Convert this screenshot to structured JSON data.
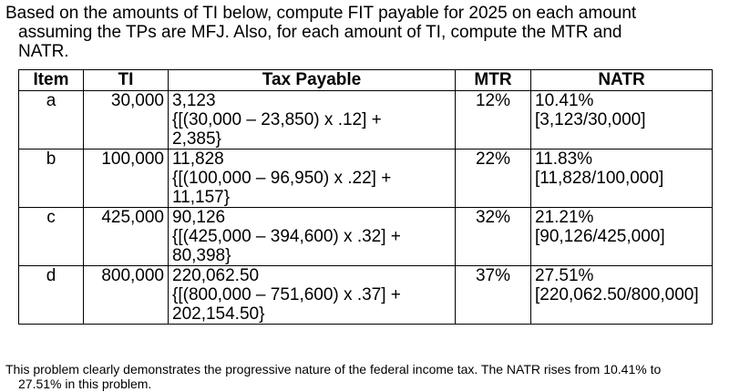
{
  "intro": {
    "line1": "Based on the amounts of TI below, compute FIT payable for 2025 on each amount",
    "line2": "assuming the TPs are MFJ. Also, for each amount of TI, compute the MTR and",
    "line3": "NATR."
  },
  "table": {
    "headers": [
      "Item",
      "TI",
      "Tax Payable",
      "MTR",
      "NATR"
    ],
    "rows": [
      {
        "item": "a",
        "ti": "30,000",
        "tax": "3,123",
        "calc1": "{[(30,000 – 23,850) x .12] +",
        "calc2": "2,385}",
        "mtr": "12%",
        "natr": "10.41%",
        "natr_calc": "[3,123/30,000]"
      },
      {
        "item": "b",
        "ti": "100,000",
        "tax": "11,828",
        "calc1": "{[(100,000 – 96,950) x .22] +",
        "calc2": "11,157}",
        "mtr": "22%",
        "natr": "11.83%",
        "natr_calc": "[11,828/100,000]"
      },
      {
        "item": "c",
        "ti": "425,000",
        "tax": "90,126",
        "calc1": "{[(425,000 – 394,600) x .32] +",
        "calc2": "80,398}",
        "mtr": "32%",
        "natr": "21.21%",
        "natr_calc": "[90,126/425,000]"
      },
      {
        "item": "d",
        "ti": "800,000",
        "tax": "220,062.50",
        "calc1": "{[(800,000 – 751,600) x .37] +",
        "calc2": "202,154.50}",
        "mtr": "37%",
        "natr": "27.51%",
        "natr_calc": "[220,062.50/800,000]"
      }
    ]
  },
  "note": {
    "line1": "This problem clearly demonstrates the progressive nature of the federal income tax. The NATR rises from 10.41% to",
    "line2": "27.51% in this problem."
  }
}
